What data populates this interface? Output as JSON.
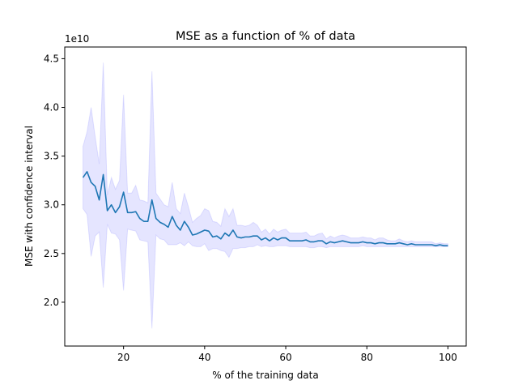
{
  "chart_data": {
    "type": "line",
    "title": "MSE as a function of % of data",
    "xlabel": "% of the training data",
    "ylabel": "MSE with confidence interval",
    "y_offset_label": "1e10",
    "xlim": [
      5.5,
      104.5
    ],
    "ylim": [
      1.55,
      4.62
    ],
    "x_ticks": [
      20,
      40,
      60,
      80,
      100
    ],
    "y_ticks": [
      2.0,
      2.5,
      3.0,
      3.5,
      4.0,
      4.5
    ],
    "x_tick_labels": [
      "20",
      "40",
      "60",
      "80",
      "100"
    ],
    "y_tick_labels": [
      "2.0",
      "2.5",
      "3.0",
      "3.5",
      "4.0",
      "4.5"
    ],
    "grid": false,
    "line_color": "#1f77b4",
    "band_color": "#0000ff",
    "series": [
      {
        "x": [
          10,
          11,
          12,
          13,
          14,
          15,
          16,
          17,
          18,
          19,
          20,
          21,
          22,
          23,
          24,
          25,
          26,
          27,
          28,
          29,
          30,
          31,
          32,
          33,
          34,
          35,
          36,
          37,
          38,
          39,
          40,
          41,
          42,
          43,
          44,
          45,
          46,
          47,
          48,
          49,
          50,
          51,
          52,
          53,
          54,
          55,
          56,
          57,
          58,
          59,
          60,
          61,
          62,
          63,
          64,
          65,
          66,
          67,
          68,
          69,
          70,
          71,
          72,
          73,
          74,
          75,
          76,
          77,
          78,
          79,
          80,
          81,
          82,
          83,
          84,
          85,
          86,
          87,
          88,
          89,
          90,
          91,
          92,
          93,
          94,
          95,
          96,
          97,
          98,
          99,
          100
        ],
        "values": [
          3.28,
          3.34,
          3.23,
          3.19,
          3.05,
          3.31,
          2.94,
          3.0,
          2.92,
          2.98,
          3.13,
          2.92,
          2.92,
          2.93,
          2.86,
          2.83,
          2.83,
          3.05,
          2.86,
          2.82,
          2.8,
          2.77,
          2.88,
          2.79,
          2.74,
          2.83,
          2.77,
          2.69,
          2.7,
          2.72,
          2.74,
          2.73,
          2.67,
          2.68,
          2.65,
          2.71,
          2.68,
          2.74,
          2.67,
          2.66,
          2.67,
          2.67,
          2.68,
          2.68,
          2.64,
          2.66,
          2.63,
          2.66,
          2.64,
          2.66,
          2.66,
          2.63,
          2.63,
          2.63,
          2.63,
          2.64,
          2.62,
          2.62,
          2.63,
          2.63,
          2.6,
          2.62,
          2.61,
          2.62,
          2.63,
          2.62,
          2.61,
          2.61,
          2.61,
          2.62,
          2.61,
          2.61,
          2.6,
          2.61,
          2.61,
          2.6,
          2.6,
          2.6,
          2.61,
          2.6,
          2.59,
          2.6,
          2.59,
          2.59,
          2.59,
          2.59,
          2.59,
          2.58,
          2.59,
          2.58,
          2.58
        ],
        "lower": [
          2.96,
          2.9,
          2.47,
          2.68,
          2.72,
          2.15,
          2.8,
          2.71,
          2.7,
          2.64,
          2.12,
          2.75,
          2.74,
          2.73,
          2.64,
          2.63,
          2.62,
          1.73,
          2.69,
          2.65,
          2.64,
          2.59,
          2.59,
          2.59,
          2.61,
          2.58,
          2.62,
          2.58,
          2.57,
          2.57,
          2.6,
          2.53,
          2.55,
          2.55,
          2.53,
          2.52,
          2.46,
          2.55,
          2.55,
          2.56,
          2.56,
          2.57,
          2.57,
          2.59,
          2.57,
          2.58,
          2.57,
          2.57,
          2.58,
          2.58,
          2.58,
          2.57,
          2.57,
          2.57,
          2.57,
          2.57,
          2.56,
          2.56,
          2.57,
          2.57,
          2.56,
          2.57,
          2.57,
          2.57,
          2.57,
          2.57,
          2.57,
          2.57,
          2.57,
          2.58,
          2.57,
          2.57,
          2.57,
          2.57,
          2.57,
          2.57,
          2.57,
          2.57,
          2.57,
          2.57,
          2.57,
          2.57,
          2.57,
          2.57,
          2.57,
          2.57,
          2.57,
          2.57,
          2.57,
          2.57,
          2.57
        ],
        "upper": [
          3.6,
          3.75,
          4.0,
          3.7,
          3.42,
          4.46,
          3.1,
          3.28,
          3.16,
          3.25,
          4.13,
          3.12,
          3.12,
          3.2,
          3.05,
          3.04,
          3.02,
          4.37,
          3.12,
          3.06,
          3.0,
          2.98,
          3.23,
          2.96,
          2.91,
          3.12,
          2.98,
          2.82,
          2.86,
          2.89,
          2.96,
          2.94,
          2.83,
          2.82,
          2.78,
          2.96,
          2.88,
          2.96,
          2.79,
          2.79,
          2.78,
          2.79,
          2.82,
          2.79,
          2.72,
          2.75,
          2.7,
          2.75,
          2.72,
          2.74,
          2.75,
          2.71,
          2.71,
          2.71,
          2.71,
          2.72,
          2.68,
          2.68,
          2.7,
          2.71,
          2.65,
          2.68,
          2.66,
          2.68,
          2.69,
          2.68,
          2.66,
          2.66,
          2.66,
          2.67,
          2.66,
          2.66,
          2.64,
          2.66,
          2.66,
          2.64,
          2.63,
          2.63,
          2.65,
          2.63,
          2.62,
          2.63,
          2.62,
          2.62,
          2.62,
          2.62,
          2.62,
          2.6,
          2.61,
          2.6,
          2.6
        ]
      }
    ]
  }
}
